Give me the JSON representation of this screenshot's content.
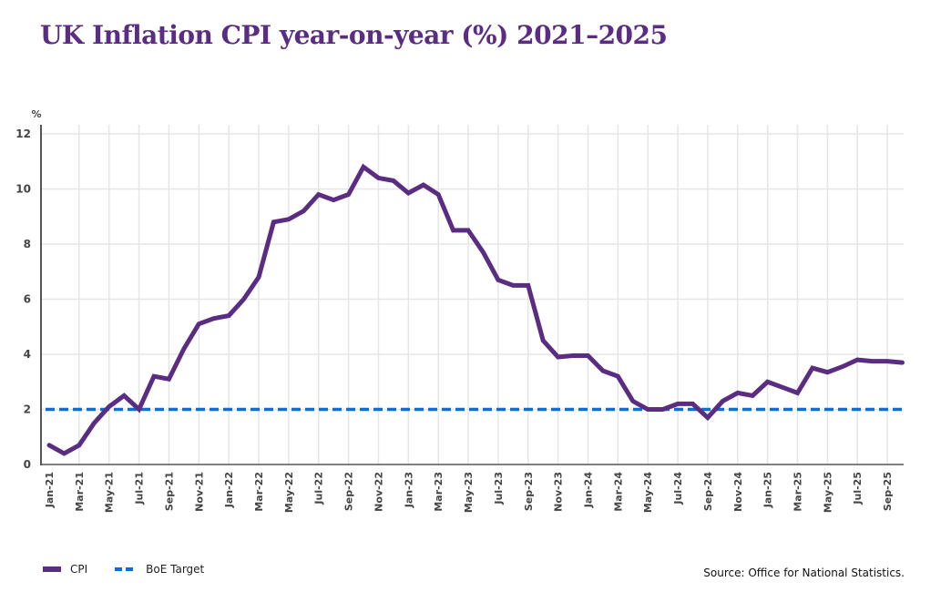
{
  "title": "UK Inflation CPI year-on-year (%) 2021–2025",
  "legend": {
    "cpi_label": "CPI",
    "boe_label": "BoE Target"
  },
  "source": "Source: Office for National Statistics.",
  "colors": {
    "cpi": "#5a2d82",
    "boe_target": "#0a6fd8",
    "grid": "#e6e6e6",
    "axis": "#555555",
    "title": "#5a2d82"
  },
  "chart_data": {
    "type": "line",
    "title": "UK Inflation CPI year-on-year (%) 2021–2025",
    "xlabel": "",
    "ylabel": "%",
    "ylim": [
      0,
      12
    ],
    "yticks": [
      0,
      2,
      4,
      6,
      8,
      10,
      12
    ],
    "grid": true,
    "legend_position": "bottom-left",
    "x_tick_labels": [
      "Jan-21",
      "Mar-21",
      "May-21",
      "Jul-21",
      "Sep-21",
      "Nov-21",
      "Jan-22",
      "Mar-22",
      "May-22",
      "Jul-22",
      "Sep-22",
      "Nov-22",
      "Jan-23",
      "Mar-23",
      "May-23",
      "Jul-23",
      "Sep-23",
      "Nov-23",
      "Jan-24",
      "Mar-24",
      "May-24",
      "Jul-24",
      "Sep-24",
      "Nov-24",
      "Jan-25",
      "Mar-25",
      "May-25",
      "Jul-25",
      "Sep-25"
    ],
    "x": [
      "Jan-21",
      "Feb-21",
      "Mar-21",
      "Apr-21",
      "May-21",
      "Jun-21",
      "Jul-21",
      "Aug-21",
      "Sep-21",
      "Oct-21",
      "Nov-21",
      "Dec-21",
      "Jan-22",
      "Feb-22",
      "Mar-22",
      "Apr-22",
      "May-22",
      "Jun-22",
      "Jul-22",
      "Aug-22",
      "Sep-22",
      "Oct-22",
      "Nov-22",
      "Dec-22",
      "Jan-23",
      "Feb-23",
      "Mar-23",
      "Apr-23",
      "May-23",
      "Jun-23",
      "Jul-23",
      "Aug-23",
      "Sep-23",
      "Oct-23",
      "Nov-23",
      "Dec-23",
      "Jan-24",
      "Feb-24",
      "Mar-24",
      "Apr-24",
      "May-24",
      "Jun-24",
      "Jul-24",
      "Aug-24",
      "Sep-24",
      "Oct-24",
      "Nov-24",
      "Dec-24",
      "Jan-25",
      "Feb-25",
      "Mar-25",
      "Apr-25",
      "May-25",
      "Jun-25",
      "Jul-25",
      "Aug-25",
      "Sep-25",
      "Oct-25"
    ],
    "series": [
      {
        "name": "CPI",
        "style": "solid",
        "values": [
          0.7,
          0.4,
          0.7,
          1.5,
          2.1,
          2.5,
          2.0,
          3.2,
          3.1,
          4.2,
          5.1,
          5.3,
          5.4,
          6.0,
          6.8,
          8.8,
          8.9,
          9.2,
          9.8,
          9.6,
          9.8,
          10.8,
          10.4,
          10.3,
          9.85,
          10.15,
          9.8,
          8.5,
          8.5,
          7.7,
          6.7,
          6.5,
          6.5,
          4.5,
          3.9,
          3.95,
          3.95,
          3.4,
          3.2,
          2.3,
          2.0,
          2.0,
          2.2,
          2.2,
          1.7,
          2.3,
          2.6,
          2.5,
          3.0,
          2.8,
          2.6,
          3.5,
          3.35,
          3.55,
          3.8,
          3.75,
          3.75,
          3.7
        ]
      },
      {
        "name": "BoE Target",
        "style": "dashed",
        "values": "constant 2.0"
      }
    ],
    "boe_target": 2.0
  }
}
